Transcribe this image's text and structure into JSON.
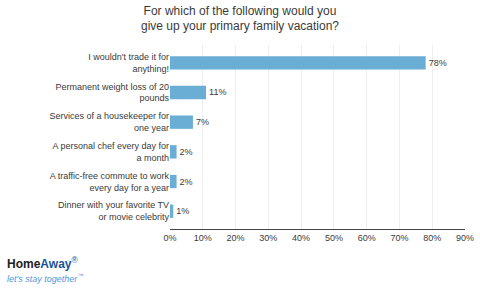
{
  "chart_data": {
    "type": "bar",
    "orientation": "horizontal",
    "title": "For which of the following would you give up your primary family vacation?",
    "categories": [
      "Dinner with your favorite TV or movie celebrity",
      "A traffic-free commute to work every day for a year",
      "A personal chef every day for a month",
      "Services of a housekeeper for one year",
      "Permanent weight loss of 20 pounds",
      "I wouldn't trade it for anything!"
    ],
    "values": [
      1,
      2,
      2,
      7,
      11,
      78
    ],
    "value_labels": [
      "1%",
      "2%",
      "2%",
      "7%",
      "11%",
      "78%"
    ],
    "data_labels": true,
    "color": "#6aadd5",
    "xlim": [
      0,
      90
    ],
    "xticks": [
      {
        "value": 0,
        "label": "0%"
      },
      {
        "value": 10,
        "label": "10%"
      },
      {
        "value": 20,
        "label": "20%"
      },
      {
        "value": 30,
        "label": "30%"
      },
      {
        "value": 40,
        "label": "40%"
      },
      {
        "value": 50,
        "label": "50%"
      },
      {
        "value": 60,
        "label": "60%"
      },
      {
        "value": 70,
        "label": "70%"
      },
      {
        "value": 80,
        "label": "80%"
      },
      {
        "value": 90,
        "label": "90%"
      }
    ],
    "grid": true,
    "annotations": [
      "Home",
      "Away",
      "®",
      "let's stay together",
      "™"
    ]
  }
}
